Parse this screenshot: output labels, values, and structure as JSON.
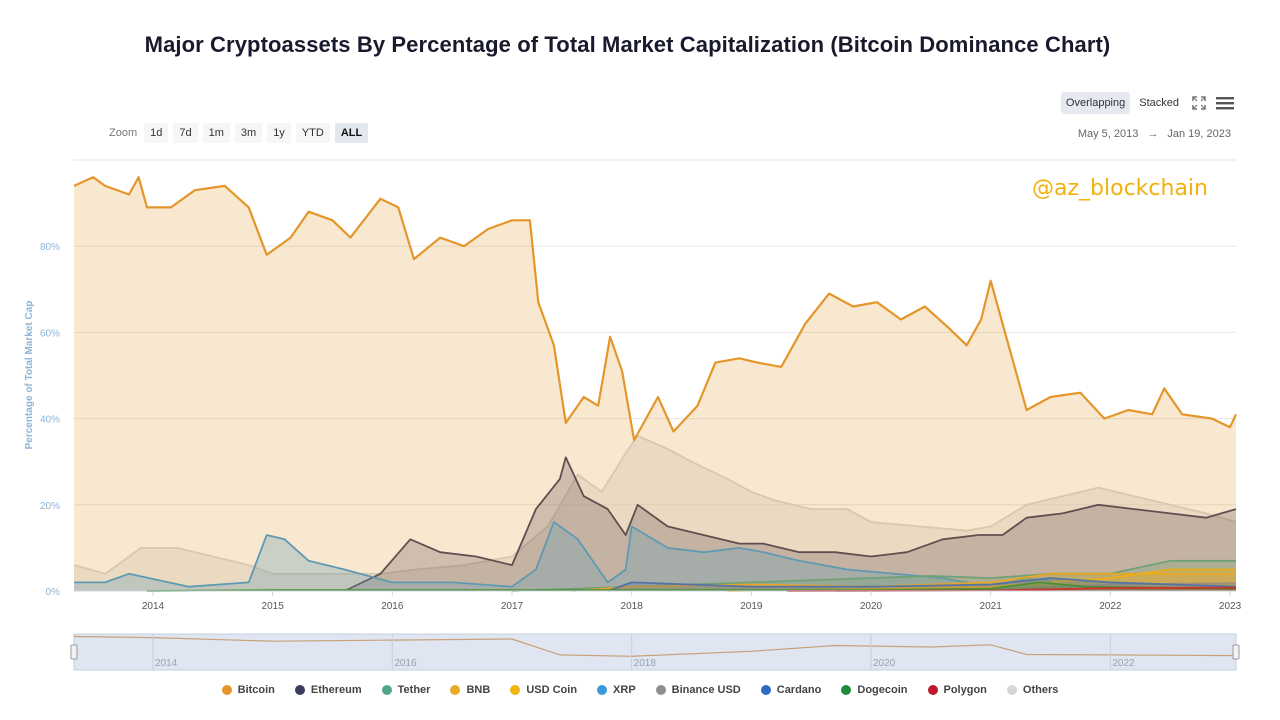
{
  "title": "Major Cryptoassets By Percentage of Total Market Capitalization (Bitcoin Dominance Chart)",
  "toolbar": {
    "overlapping_label": "Overlapping",
    "stacked_label": "Stacked",
    "fullscreen_icon": "fullscreen-icon",
    "menu_icon": "hamburger-menu-icon"
  },
  "zoom": {
    "label": "Zoom",
    "options": [
      "1d",
      "7d",
      "1m",
      "3m",
      "1y",
      "YTD",
      "ALL"
    ],
    "active": "ALL"
  },
  "range": {
    "from": "May 5, 2013",
    "arrow": "→",
    "to": "Jan 19, 2023"
  },
  "watermark": "@az_blockchain",
  "chart_data": {
    "type": "area",
    "title": "Major Cryptoassets By Percentage of Total Market Capitalization (Bitcoin Dominance Chart)",
    "ylabel": "Percentage of Total Market Cap",
    "xlabel": "",
    "ylim": [
      0,
      100
    ],
    "xlim": [
      2013.34,
      2023.05
    ],
    "yticks": [
      0,
      20,
      40,
      60,
      80
    ],
    "ytick_labels": [
      "0%",
      "20%",
      "40%",
      "60%",
      "80%"
    ],
    "xticks": [
      2014,
      2015,
      2016,
      2017,
      2018,
      2019,
      2020,
      2021,
      2022,
      2023
    ],
    "xtick_labels": [
      "2014",
      "2015",
      "2016",
      "2017",
      "2018",
      "2019",
      "2020",
      "2021",
      "2022",
      "2023"
    ],
    "navigator_labels": [
      "2014",
      "2016",
      "2018",
      "2020",
      "2022"
    ],
    "mode": "Overlapping",
    "series": [
      {
        "name": "Others",
        "color": "#d6d6d6",
        "points": [
          [
            2013.34,
            6
          ],
          [
            2013.6,
            4
          ],
          [
            2013.9,
            10
          ],
          [
            2014.2,
            10
          ],
          [
            2014.5,
            8
          ],
          [
            2014.8,
            6
          ],
          [
            2015.0,
            4
          ],
          [
            2015.5,
            4
          ],
          [
            2015.9,
            4
          ],
          [
            2016.2,
            5
          ],
          [
            2016.6,
            6
          ],
          [
            2017.0,
            8
          ],
          [
            2017.3,
            15
          ],
          [
            2017.55,
            27
          ],
          [
            2017.75,
            23
          ],
          [
            2017.95,
            32
          ],
          [
            2018.05,
            36
          ],
          [
            2018.3,
            33
          ],
          [
            2018.5,
            30
          ],
          [
            2018.8,
            26
          ],
          [
            2019.0,
            23
          ],
          [
            2019.2,
            21
          ],
          [
            2019.5,
            19
          ],
          [
            2019.8,
            19
          ],
          [
            2020.0,
            16
          ],
          [
            2020.4,
            15
          ],
          [
            2020.8,
            14
          ],
          [
            2021.0,
            15
          ],
          [
            2021.3,
            20
          ],
          [
            2021.6,
            22
          ],
          [
            2021.9,
            24
          ],
          [
            2022.2,
            22
          ],
          [
            2022.5,
            20
          ],
          [
            2022.8,
            18
          ],
          [
            2023.05,
            16
          ]
        ]
      },
      {
        "name": "Ethereum",
        "color": "#3c3c5c",
        "points": [
          [
            2015.6,
            0
          ],
          [
            2015.9,
            4
          ],
          [
            2016.15,
            12
          ],
          [
            2016.4,
            9
          ],
          [
            2016.7,
            8
          ],
          [
            2017.0,
            6
          ],
          [
            2017.2,
            19
          ],
          [
            2017.4,
            26
          ],
          [
            2017.45,
            31
          ],
          [
            2017.6,
            22
          ],
          [
            2017.8,
            19
          ],
          [
            2017.95,
            13
          ],
          [
            2018.05,
            20
          ],
          [
            2018.3,
            15
          ],
          [
            2018.6,
            13
          ],
          [
            2018.9,
            11
          ],
          [
            2019.1,
            11
          ],
          [
            2019.4,
            9
          ],
          [
            2019.7,
            9
          ],
          [
            2020.0,
            8
          ],
          [
            2020.3,
            9
          ],
          [
            2020.6,
            12
          ],
          [
            2020.9,
            13
          ],
          [
            2021.1,
            13
          ],
          [
            2021.3,
            17
          ],
          [
            2021.6,
            18
          ],
          [
            2021.9,
            20
          ],
          [
            2022.2,
            19
          ],
          [
            2022.5,
            18
          ],
          [
            2022.8,
            17
          ],
          [
            2023.05,
            19
          ]
        ]
      },
      {
        "name": "XRP",
        "color": "#3a9ad9",
        "points": [
          [
            2013.34,
            2
          ],
          [
            2013.6,
            2
          ],
          [
            2013.8,
            4
          ],
          [
            2014.3,
            1
          ],
          [
            2014.8,
            2
          ],
          [
            2014.95,
            13
          ],
          [
            2015.1,
            12
          ],
          [
            2015.3,
            7
          ],
          [
            2015.6,
            5
          ],
          [
            2016.0,
            2
          ],
          [
            2016.5,
            2
          ],
          [
            2017.0,
            1
          ],
          [
            2017.2,
            5
          ],
          [
            2017.35,
            16
          ],
          [
            2017.55,
            12
          ],
          [
            2017.8,
            2
          ],
          [
            2017.95,
            5
          ],
          [
            2018.0,
            15
          ],
          [
            2018.3,
            10
          ],
          [
            2018.6,
            9
          ],
          [
            2018.9,
            10
          ],
          [
            2019.1,
            9
          ],
          [
            2019.4,
            7
          ],
          [
            2019.8,
            5
          ],
          [
            2020.2,
            4
          ],
          [
            2020.6,
            3
          ],
          [
            2021.0,
            1
          ],
          [
            2021.3,
            3
          ],
          [
            2021.6,
            2
          ],
          [
            2022.0,
            2
          ],
          [
            2022.5,
            1.5
          ],
          [
            2023.05,
            1.5
          ]
        ]
      },
      {
        "name": "Tether",
        "color": "#50a58c",
        "points": [
          [
            2017.0,
            0
          ],
          [
            2018.0,
            1
          ],
          [
            2019.0,
            2
          ],
          [
            2020.0,
            3
          ],
          [
            2020.5,
            3.5
          ],
          [
            2021.0,
            3
          ],
          [
            2021.5,
            4
          ],
          [
            2022.0,
            4
          ],
          [
            2022.5,
            7
          ],
          [
            2023.05,
            7
          ]
        ]
      },
      {
        "name": "BNB",
        "color": "#e8a92a",
        "points": [
          [
            2017.5,
            0
          ],
          [
            2018.0,
            1
          ],
          [
            2019.0,
            1.5
          ],
          [
            2020.0,
            1
          ],
          [
            2021.0,
            2
          ],
          [
            2021.5,
            4
          ],
          [
            2022.0,
            4
          ],
          [
            2022.5,
            4
          ],
          [
            2023.05,
            4
          ]
        ]
      },
      {
        "name": "USD Coin",
        "color": "#f2b40f",
        "points": [
          [
            2018.8,
            0
          ],
          [
            2020.0,
            0.5
          ],
          [
            2021.0,
            1
          ],
          [
            2021.5,
            2
          ],
          [
            2022.0,
            3
          ],
          [
            2022.5,
            5
          ],
          [
            2023.05,
            5
          ]
        ]
      },
      {
        "name": "Binance USD",
        "color": "#8f8f8f",
        "points": [
          [
            2019.7,
            0
          ],
          [
            2021.0,
            0.3
          ],
          [
            2022.0,
            1.5
          ],
          [
            2023.05,
            1.8
          ]
        ]
      },
      {
        "name": "Cardano",
        "color": "#2f6bc2",
        "points": [
          [
            2017.8,
            0
          ],
          [
            2018.0,
            2
          ],
          [
            2019.0,
            1
          ],
          [
            2020.0,
            1
          ],
          [
            2021.0,
            1.5
          ],
          [
            2021.5,
            3
          ],
          [
            2022.0,
            2
          ],
          [
            2023.05,
            1
          ]
        ]
      },
      {
        "name": "Dogecoin",
        "color": "#1e8c3a",
        "points": [
          [
            2013.95,
            0
          ],
          [
            2015.0,
            0.2
          ],
          [
            2020.0,
            0.2
          ],
          [
            2021.0,
            0.5
          ],
          [
            2021.4,
            2
          ],
          [
            2021.8,
            1
          ],
          [
            2023.05,
            0.5
          ]
        ]
      },
      {
        "name": "Polygon",
        "color": "#c0182d",
        "points": [
          [
            2019.3,
            0
          ],
          [
            2021.0,
            0.1
          ],
          [
            2022.0,
            0.7
          ],
          [
            2023.05,
            0.8
          ]
        ]
      },
      {
        "name": "Bitcoin",
        "color": "#e4962b",
        "points": [
          [
            2013.34,
            94
          ],
          [
            2013.5,
            96
          ],
          [
            2013.6,
            94
          ],
          [
            2013.8,
            92
          ],
          [
            2013.88,
            96
          ],
          [
            2013.95,
            89
          ],
          [
            2014.15,
            89
          ],
          [
            2014.35,
            93
          ],
          [
            2014.6,
            94
          ],
          [
            2014.8,
            89
          ],
          [
            2014.95,
            78
          ],
          [
            2015.15,
            82
          ],
          [
            2015.3,
            88
          ],
          [
            2015.5,
            86
          ],
          [
            2015.65,
            82
          ],
          [
            2015.9,
            91
          ],
          [
            2016.05,
            89
          ],
          [
            2016.18,
            77
          ],
          [
            2016.4,
            82
          ],
          [
            2016.6,
            80
          ],
          [
            2016.8,
            84
          ],
          [
            2017.0,
            86
          ],
          [
            2017.15,
            86
          ],
          [
            2017.22,
            67
          ],
          [
            2017.35,
            57
          ],
          [
            2017.45,
            39
          ],
          [
            2017.6,
            45
          ],
          [
            2017.72,
            43
          ],
          [
            2017.82,
            59
          ],
          [
            2017.92,
            51
          ],
          [
            2018.02,
            35
          ],
          [
            2018.22,
            45
          ],
          [
            2018.35,
            37
          ],
          [
            2018.55,
            43
          ],
          [
            2018.7,
            53
          ],
          [
            2018.9,
            54
          ],
          [
            2019.05,
            53
          ],
          [
            2019.25,
            52
          ],
          [
            2019.45,
            62
          ],
          [
            2019.65,
            69
          ],
          [
            2019.85,
            66
          ],
          [
            2020.05,
            67
          ],
          [
            2020.25,
            63
          ],
          [
            2020.45,
            66
          ],
          [
            2020.65,
            61
          ],
          [
            2020.8,
            57
          ],
          [
            2020.92,
            63
          ],
          [
            2021.0,
            72
          ],
          [
            2021.1,
            62
          ],
          [
            2021.3,
            42
          ],
          [
            2021.5,
            45
          ],
          [
            2021.75,
            46
          ],
          [
            2021.95,
            40
          ],
          [
            2022.15,
            42
          ],
          [
            2022.35,
            41
          ],
          [
            2022.45,
            47
          ],
          [
            2022.6,
            41
          ],
          [
            2022.85,
            40
          ],
          [
            2023.0,
            38
          ],
          [
            2023.05,
            41
          ]
        ]
      }
    ],
    "navigator_series": [
      [
        2013.34,
        93
      ],
      [
        2014.0,
        90
      ],
      [
        2015.0,
        80
      ],
      [
        2016.0,
        83
      ],
      [
        2017.0,
        86
      ],
      [
        2017.4,
        42
      ],
      [
        2018.0,
        38
      ],
      [
        2019.0,
        52
      ],
      [
        2019.7,
        68
      ],
      [
        2020.5,
        64
      ],
      [
        2021.0,
        70
      ],
      [
        2021.3,
        43
      ],
      [
        2022.0,
        42
      ],
      [
        2023.05,
        40
      ]
    ]
  },
  "legend": [
    {
      "name": "Bitcoin",
      "color": "#e4962b"
    },
    {
      "name": "Ethereum",
      "color": "#3c3c5c"
    },
    {
      "name": "Tether",
      "color": "#50a58c"
    },
    {
      "name": "BNB",
      "color": "#e8a92a"
    },
    {
      "name": "USD Coin",
      "color": "#f2b40f"
    },
    {
      "name": "XRP",
      "color": "#3a9ad9"
    },
    {
      "name": "Binance USD",
      "color": "#8f8f8f"
    },
    {
      "name": "Cardano",
      "color": "#2f6bc2"
    },
    {
      "name": "Dogecoin",
      "color": "#1e8c3a"
    },
    {
      "name": "Polygon",
      "color": "#c0182d"
    },
    {
      "name": "Others",
      "color": "#d6d6d6"
    }
  ]
}
